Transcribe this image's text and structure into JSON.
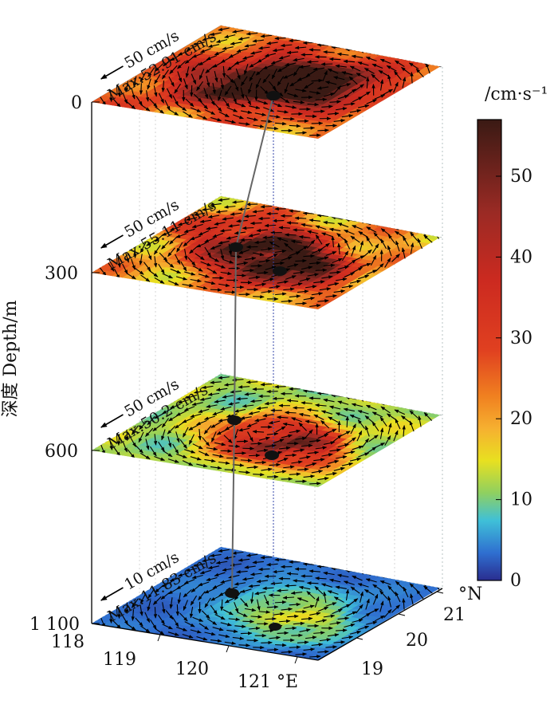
{
  "chart_data": {
    "type": "3d-layered-vector-field",
    "y_axis": {
      "label": "深度 Depth/m",
      "ticks": [
        "0",
        "300",
        "600",
        "1 100"
      ]
    },
    "lon_axis": {
      "unit": "°E",
      "ticks": [
        "118",
        "119",
        "120",
        "121"
      ],
      "unit_label": "121 °E"
    },
    "lat_axis": {
      "unit": "°N",
      "ticks": [
        "19",
        "20",
        "21"
      ]
    },
    "colorbar": {
      "unit": "/cm·s⁻¹",
      "min": 0,
      "max": 57,
      "ticks": [
        "0",
        "10",
        "20",
        "30",
        "40",
        "50"
      ]
    },
    "layers": [
      {
        "depth": 0,
        "ref_vector": "50 cm/s",
        "max_speed": "Max:52.91 cm/s",
        "max_value": 52.91
      },
      {
        "depth": 300,
        "ref_vector": "50 cm/s",
        "max_speed": "Max:55.11 cm/s",
        "max_value": 55.11
      },
      {
        "depth": 600,
        "ref_vector": "50 cm/s",
        "max_speed": "Max:50.2 cm/s",
        "max_value": 50.2
      },
      {
        "depth": 1100,
        "ref_vector": "10 cm/s",
        "max_speed": "Max:11.83 cm/s",
        "max_value": 11.83
      }
    ],
    "colors": {
      "c0": "#2b2c8f",
      "c10": "#e8e020",
      "c20": "#f08a20",
      "c30": "#e03420",
      "c45": "#a42820",
      "c57": "#3a1a14"
    }
  }
}
